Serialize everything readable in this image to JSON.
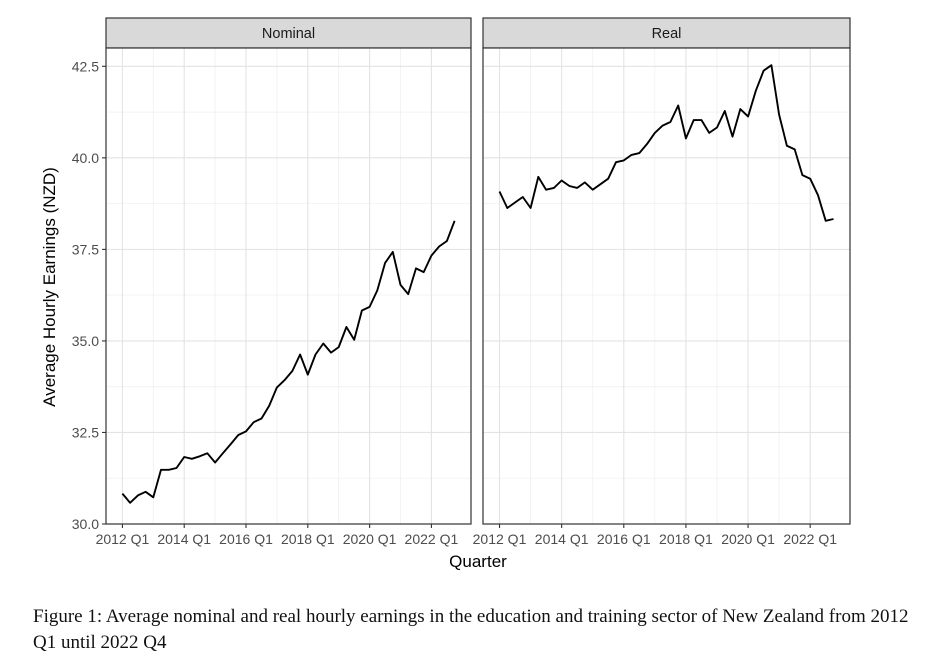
{
  "figure": {
    "caption": "Figure 1: Average nominal and real hourly earnings in the education and training sector of New Zealand from 2012 Q1 until 2022 Q4"
  },
  "chart_data": {
    "type": "line",
    "xlabel": "Quarter",
    "ylabel": "Average Hourly Earnings (NZD)",
    "ylim": [
      30.0,
      43.0
    ],
    "yticks": [
      "30.0",
      "32.5",
      "35.0",
      "37.5",
      "40.0",
      "42.5"
    ],
    "yticks_values": [
      30.0,
      32.5,
      35.0,
      37.5,
      40.0,
      42.5
    ],
    "xticks": [
      "2012 Q1",
      "2014 Q1",
      "2016 Q1",
      "2018 Q1",
      "2020 Q1",
      "2022 Q1"
    ],
    "xticks_index": [
      0,
      8,
      16,
      24,
      32,
      40
    ],
    "grid": true,
    "line_color": "#000000",
    "panels": [
      {
        "title": "Nominal",
        "values": [
          30.83,
          30.58,
          30.78,
          30.88,
          30.73,
          31.48,
          31.48,
          31.53,
          31.83,
          31.78,
          31.85,
          31.93,
          31.68,
          31.93,
          32.18,
          32.43,
          32.53,
          32.78,
          32.88,
          33.23,
          33.73,
          33.93,
          34.18,
          34.63,
          34.08,
          34.63,
          34.93,
          34.68,
          34.83,
          35.38,
          35.03,
          35.83,
          35.93,
          36.38,
          37.13,
          37.43,
          36.53,
          36.28,
          36.98,
          36.88,
          37.33,
          37.58,
          37.73,
          38.28
        ]
      },
      {
        "title": "Real",
        "values": [
          39.08,
          38.63,
          38.78,
          38.93,
          38.63,
          39.48,
          39.13,
          39.18,
          39.38,
          39.23,
          39.18,
          39.33,
          39.13,
          39.28,
          39.43,
          39.88,
          39.93,
          40.08,
          40.13,
          40.38,
          40.68,
          40.88,
          40.98,
          41.43,
          40.53,
          41.03,
          41.03,
          40.68,
          40.83,
          41.28,
          40.58,
          41.33,
          41.13,
          41.83,
          42.38,
          42.53,
          41.18,
          40.33,
          40.23,
          39.53,
          39.43,
          38.98,
          38.28,
          38.33
        ]
      }
    ]
  }
}
